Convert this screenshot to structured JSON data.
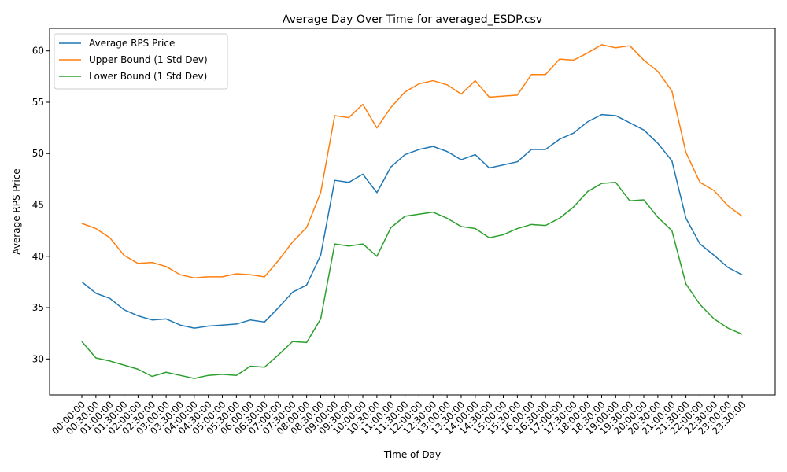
{
  "chart_data": {
    "type": "line",
    "title": "Average Day Over Time for averaged_ESDP.csv",
    "xlabel": "Time of Day",
    "ylabel": "Average RPS Price",
    "ylim": [
      26.5,
      62.2
    ],
    "yticks": [
      30,
      35,
      40,
      45,
      50,
      55,
      60
    ],
    "legend_position": "top-left",
    "grid": false,
    "x": [
      "00:00:00",
      "00:30:00",
      "01:00:00",
      "01:30:00",
      "02:00:00",
      "02:30:00",
      "03:00:00",
      "03:30:00",
      "04:00:00",
      "04:30:00",
      "05:00:00",
      "05:30:00",
      "06:00:00",
      "06:30:00",
      "07:00:00",
      "07:30:00",
      "08:00:00",
      "08:30:00",
      "09:00:00",
      "09:30:00",
      "10:00:00",
      "10:30:00",
      "11:00:00",
      "11:30:00",
      "12:00:00",
      "12:30:00",
      "13:00:00",
      "13:30:00",
      "14:00:00",
      "14:30:00",
      "15:00:00",
      "15:30:00",
      "16:00:00",
      "16:30:00",
      "17:00:00",
      "17:30:00",
      "18:00:00",
      "18:30:00",
      "19:00:00",
      "19:30:00",
      "20:00:00",
      "20:30:00",
      "21:00:00",
      "21:30:00",
      "22:00:00",
      "22:30:00",
      "23:00:00",
      "23:30:00"
    ],
    "series": [
      {
        "name": "Average RPS Price",
        "color": "#1f77b4",
        "values": [
          37.5,
          36.4,
          35.9,
          34.8,
          34.2,
          33.8,
          33.9,
          33.3,
          33.0,
          33.2,
          33.3,
          33.4,
          33.8,
          33.6,
          35.0,
          36.5,
          37.2,
          40.1,
          47.4,
          47.2,
          48.0,
          46.2,
          48.7,
          49.9,
          50.4,
          50.7,
          50.2,
          49.4,
          49.9,
          48.6,
          48.9,
          49.2,
          50.4,
          50.4,
          51.4,
          52.0,
          53.1,
          53.8,
          53.7,
          53.0,
          52.3,
          51.0,
          49.3,
          43.7,
          41.2,
          40.1,
          38.9,
          38.2
        ]
      },
      {
        "name": "Upper Bound (1 Std Dev)",
        "color": "#ff7f0e",
        "values": [
          43.2,
          42.7,
          41.8,
          40.1,
          39.3,
          39.4,
          39.0,
          38.2,
          37.9,
          38.0,
          38.0,
          38.3,
          38.2,
          38.0,
          39.6,
          41.4,
          42.8,
          46.2,
          53.7,
          53.5,
          54.8,
          52.5,
          54.5,
          56.0,
          56.8,
          57.1,
          56.7,
          55.8,
          57.1,
          55.5,
          55.6,
          55.7,
          57.7,
          57.7,
          59.2,
          59.1,
          59.8,
          60.6,
          60.3,
          60.5,
          59.1,
          58.0,
          56.1,
          50.1,
          47.2,
          46.4,
          44.9,
          43.9
        ]
      },
      {
        "name": "Lower Bound (1 Std Dev)",
        "color": "#2ca02c",
        "values": [
          31.7,
          30.1,
          29.8,
          29.4,
          29.0,
          28.3,
          28.7,
          28.4,
          28.1,
          28.4,
          28.5,
          28.4,
          29.3,
          29.2,
          30.4,
          31.7,
          31.6,
          33.9,
          41.2,
          41.0,
          41.2,
          40.0,
          42.8,
          43.9,
          44.1,
          44.3,
          43.7,
          42.9,
          42.7,
          41.8,
          42.1,
          42.7,
          43.1,
          43.0,
          43.7,
          44.8,
          46.3,
          47.1,
          47.2,
          45.4,
          45.5,
          43.8,
          42.5,
          37.3,
          35.3,
          33.9,
          33.0,
          32.4
        ]
      }
    ]
  }
}
